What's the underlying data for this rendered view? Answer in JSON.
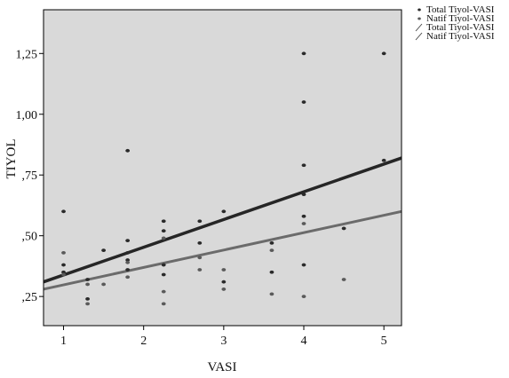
{
  "chart_data": {
    "type": "scatter",
    "xlabel": "VASI",
    "ylabel": "TIYOL",
    "xlim": [
      0.75,
      5.22
    ],
    "ylim": [
      0.13,
      1.43
    ],
    "x_ticks": [
      1,
      2,
      3,
      4,
      5
    ],
    "x_tick_labels": [
      "1",
      "2",
      "3",
      "4",
      "5"
    ],
    "y_ticks": [
      0.25,
      0.5,
      0.75,
      1.0,
      1.25
    ],
    "y_tick_labels": [
      ",25",
      ",50",
      ",75",
      "1,00",
      "1,25"
    ],
    "background": "#d9d9d9",
    "grid": false,
    "legend_position": "top-right",
    "legend": [
      {
        "label": "Total Tiyol-VASI",
        "marker": "dot"
      },
      {
        "label": "Natif Tiyol-VASI",
        "marker": "dot"
      },
      {
        "label": "Total Tiyol-VASI",
        "marker": "line"
      },
      {
        "label": "Natif Tiyol-VASI",
        "marker": "line"
      }
    ],
    "series": [
      {
        "name": "Total Tiyol-VASI",
        "color": "#2a2a2a",
        "points": [
          [
            1,
            0.6
          ],
          [
            1,
            0.38
          ],
          [
            1,
            0.35
          ],
          [
            1.3,
            0.32
          ],
          [
            1.3,
            0.24
          ],
          [
            1.5,
            0.44
          ],
          [
            1.8,
            0.85
          ],
          [
            1.8,
            0.48
          ],
          [
            1.8,
            0.43
          ],
          [
            1.8,
            0.4
          ],
          [
            1.8,
            0.36
          ],
          [
            2.25,
            0.56
          ],
          [
            2.25,
            0.52
          ],
          [
            2.25,
            0.38
          ],
          [
            2.25,
            0.34
          ],
          [
            2.7,
            0.56
          ],
          [
            2.7,
            0.47
          ],
          [
            3,
            0.6
          ],
          [
            3,
            0.31
          ],
          [
            3.6,
            0.35
          ],
          [
            3.6,
            0.47
          ],
          [
            4,
            1.25
          ],
          [
            4,
            1.05
          ],
          [
            4,
            0.79
          ],
          [
            4,
            0.67
          ],
          [
            4,
            0.58
          ],
          [
            4,
            0.38
          ],
          [
            4.5,
            0.53
          ],
          [
            5,
            1.25
          ],
          [
            5,
            0.81
          ]
        ]
      },
      {
        "name": "Natif Tiyol-VASI",
        "color": "#5a5a5a",
        "points": [
          [
            1,
            0.43
          ],
          [
            1,
            0.34
          ],
          [
            1.3,
            0.3
          ],
          [
            1.3,
            0.22
          ],
          [
            1.5,
            0.3
          ],
          [
            1.8,
            0.39
          ],
          [
            1.8,
            0.33
          ],
          [
            2.25,
            0.49
          ],
          [
            2.25,
            0.27
          ],
          [
            2.25,
            0.22
          ],
          [
            2.7,
            0.41
          ],
          [
            2.7,
            0.36
          ],
          [
            3,
            0.36
          ],
          [
            3,
            0.28
          ],
          [
            3.6,
            0.44
          ],
          [
            3.6,
            0.26
          ],
          [
            4,
            0.55
          ],
          [
            4,
            0.25
          ],
          [
            4.5,
            0.32
          ]
        ]
      }
    ],
    "fit_lines": [
      {
        "name": "Total Tiyol-VASI",
        "color": "#262626",
        "x": [
          0.75,
          5.22
        ],
        "y": [
          0.31,
          0.82
        ],
        "width": 3.5
      },
      {
        "name": "Natif Tiyol-VASI",
        "color": "#6b6b6b",
        "x": [
          0.75,
          5.22
        ],
        "y": [
          0.28,
          0.6
        ],
        "width": 3
      }
    ]
  }
}
